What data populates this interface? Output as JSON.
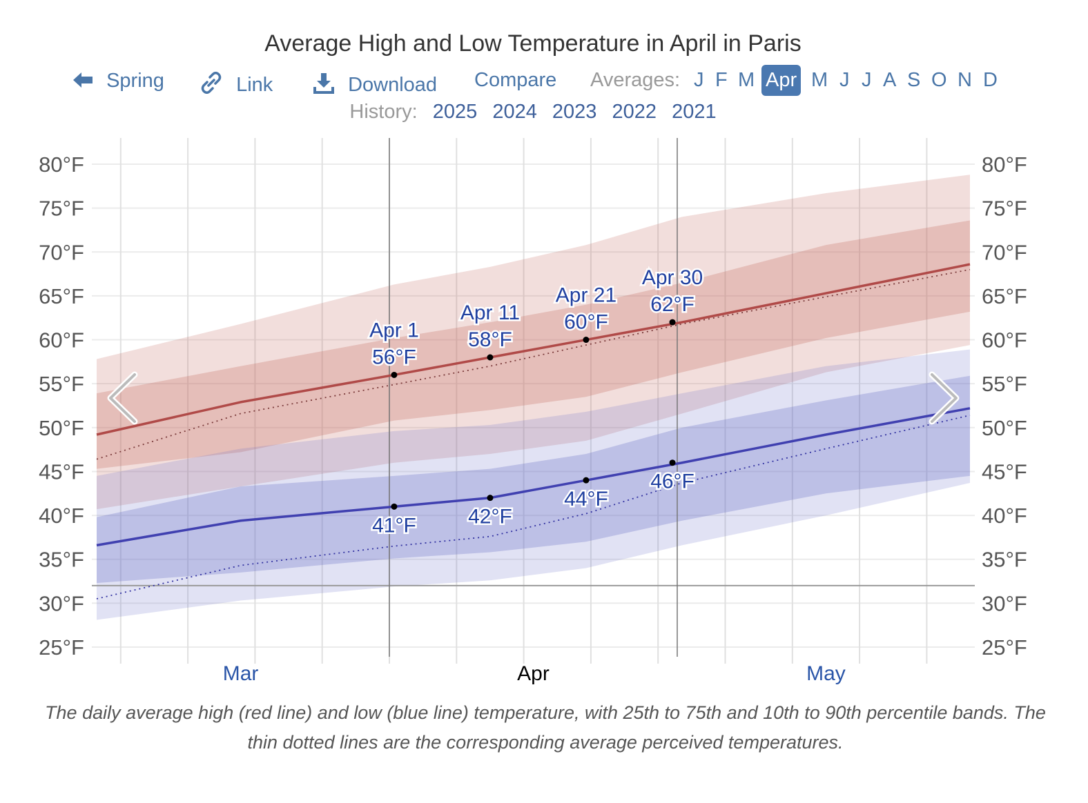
{
  "title": "Average High and Low Temperature in April in Paris",
  "nav": {
    "back_label": "Spring",
    "back_icon": "arrow-left-icon",
    "link_label": "Link",
    "link_icon": "link-icon",
    "download_label": "Download",
    "download_icon": "download-icon",
    "compare_label": "Compare",
    "averages_label": "Averages:",
    "months": [
      "J",
      "F",
      "M",
      "Apr",
      "M",
      "J",
      "J",
      "A",
      "S",
      "O",
      "N",
      "D"
    ],
    "selected_month": "Apr",
    "accent_color": "#4a78b0"
  },
  "history": {
    "label": "History:",
    "years": [
      "2025",
      "2024",
      "2023",
      "2022",
      "2021"
    ]
  },
  "caption": "The daily average high (red line) and low (blue line) temperature, with 25th to 75th and 10th to 90th percentile bands. The thin dotted lines are the corresponding average perceived temperatures.",
  "chart_data": {
    "type": "area",
    "title": "Average High and Low Temperature in April in Paris",
    "ylim": [
      25,
      80
    ],
    "y_ticks": [
      "25°F",
      "30°F",
      "35°F",
      "40°F",
      "45°F",
      "50°F",
      "55°F",
      "60°F",
      "65°F",
      "70°F",
      "75°F",
      "80°F"
    ],
    "x_tick_labels": [
      "Mar",
      "Apr",
      "May"
    ],
    "highlight_month": "Apr",
    "freezing_line": 32,
    "grid": true,
    "colors": {
      "high": "#b04a48",
      "low": "#4040b0",
      "high_band": "#c46a60",
      "low_band": "#6a70c8",
      "annotation": "#2040a0"
    },
    "x": [
      "Mar 1",
      "Mar 16",
      "Apr 1",
      "Apr 11",
      "Apr 21",
      "May 1",
      "May 16",
      "May 31"
    ],
    "series": [
      {
        "key": "high",
        "values": [
          49.2,
          52.9,
          56,
          58,
          60,
          62,
          65.3,
          68.6
        ]
      },
      {
        "key": "low",
        "values": [
          36.6,
          39.4,
          41,
          42,
          44,
          46,
          49.2,
          52.2
        ]
      },
      {
        "key": "high_p10",
        "values": [
          40.7,
          43.3,
          46,
          47,
          48.5,
          51.6,
          56.3,
          59.4
        ]
      },
      {
        "key": "high_p25",
        "values": [
          45.3,
          47.2,
          50.8,
          52,
          53.5,
          56.3,
          60.2,
          63.2
        ]
      },
      {
        "key": "high_p75",
        "values": [
          53.9,
          57,
          60.2,
          62,
          64,
          66.5,
          70.8,
          73.6
        ]
      },
      {
        "key": "high_p90",
        "values": [
          57.8,
          61.8,
          66.3,
          68.3,
          70.8,
          74,
          76.7,
          78.8
        ]
      },
      {
        "key": "low_p10",
        "values": [
          28.1,
          30.3,
          31.9,
          32.6,
          34,
          36.6,
          40,
          43.7
        ]
      },
      {
        "key": "low_p25",
        "values": [
          32.3,
          33.5,
          35.1,
          35.8,
          37,
          39.4,
          42.5,
          44.5
        ]
      },
      {
        "key": "low_p75",
        "values": [
          39.8,
          43.3,
          44.5,
          45.3,
          47,
          50,
          53.1,
          55.9
        ]
      },
      {
        "key": "low_p90",
        "values": [
          44.5,
          47.6,
          49.6,
          50.3,
          51.8,
          53.9,
          57,
          58.9
        ]
      },
      {
        "key": "high_perceived",
        "values": [
          46.4,
          51.6,
          54.9,
          57,
          59.4,
          61.8,
          64.9,
          68
        ]
      },
      {
        "key": "low_perceived",
        "values": [
          30.5,
          34.3,
          36.5,
          37.6,
          40.2,
          43.7,
          47.6,
          51.4
        ]
      }
    ],
    "annotations": [
      {
        "date": "Apr 1",
        "label": "Apr 1",
        "high": 56,
        "high_label": "56°F",
        "low": 41,
        "low_label": "41°F"
      },
      {
        "date": "Apr 11",
        "label": "Apr 11",
        "high": 58,
        "high_label": "58°F",
        "low": 42,
        "low_label": "42°F"
      },
      {
        "date": "Apr 21",
        "label": "Apr 21",
        "high": 60,
        "high_label": "60°F",
        "low": 44,
        "low_label": "44°F"
      },
      {
        "date": "Apr 30",
        "label": "Apr 30",
        "high": 62,
        "high_label": "62°F",
        "low": 46,
        "low_label": "46°F"
      }
    ]
  }
}
